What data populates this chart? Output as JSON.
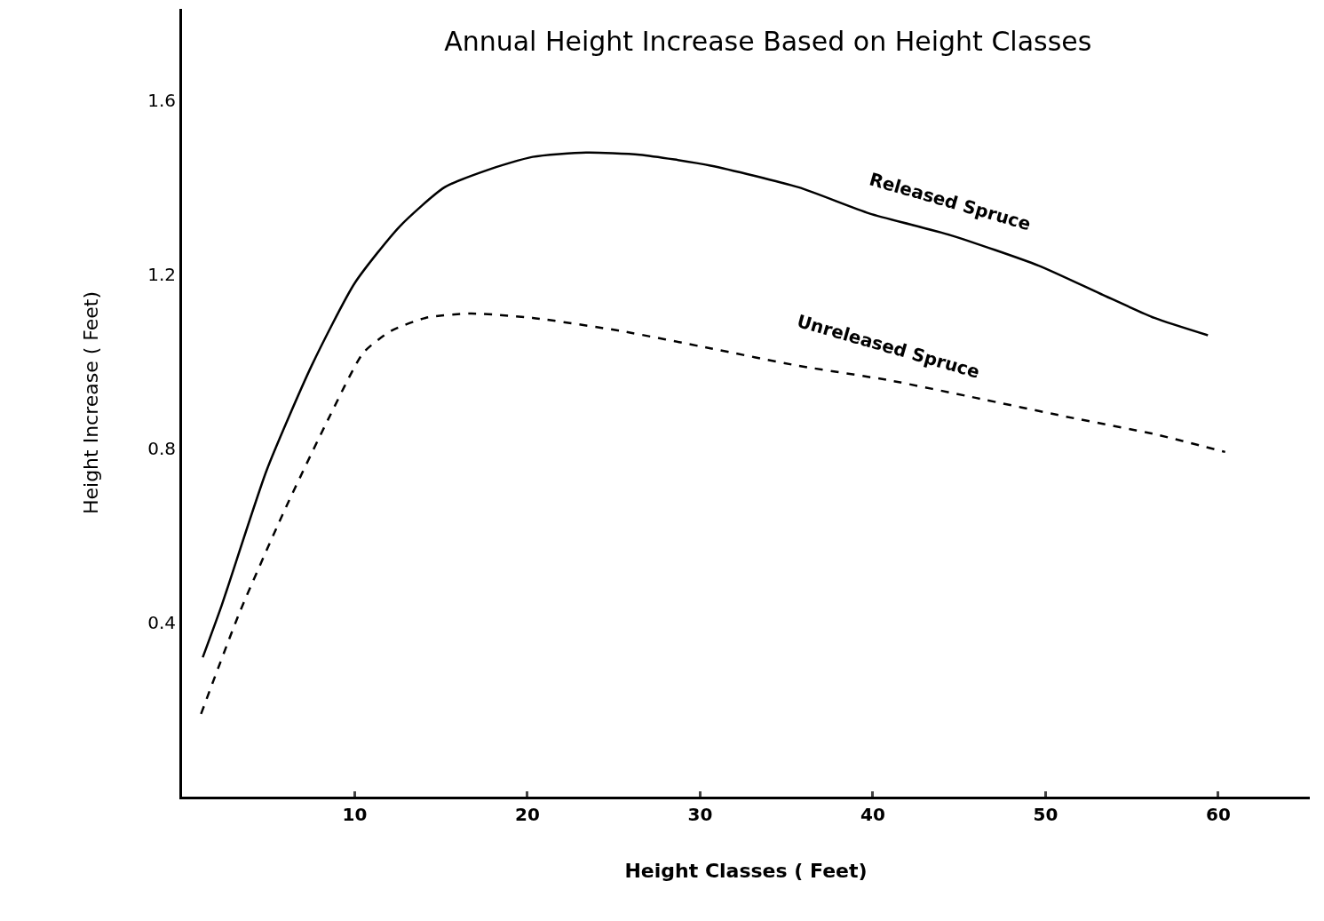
{
  "chart_data": {
    "type": "line",
    "title": "Annual Height Increase Based on Height Classes",
    "xlabel": "Height Classes ( Feet)",
    "ylabel": "Height Increase ( Feet)",
    "xlim": [
      0,
      65.3
    ],
    "ylim": [
      0,
      1.81
    ],
    "xticks": [
      10,
      20,
      30,
      40,
      50,
      60
    ],
    "yticks": [
      0.4,
      0.8,
      1.2,
      1.6
    ],
    "grid": false,
    "legend": false,
    "marker": "none",
    "series": [
      {
        "name": "Released Spruce",
        "color": "#000000",
        "line_style": "solid",
        "x": [
          1.2,
          2.3,
          4.9,
          7.5,
          10,
          12.6,
          15.2,
          17.7,
          20.3,
          23.4,
          26.5,
          30.6,
          35.7,
          39.8,
          44.5,
          49.6,
          53.2,
          56.3,
          59.4
        ],
        "values": [
          0.32,
          0.44,
          0.75,
          0.99,
          1.18,
          1.31,
          1.4,
          1.44,
          1.47,
          1.48,
          1.475,
          1.45,
          1.4,
          1.34,
          1.29,
          1.22,
          1.155,
          1.1,
          1.06
        ]
      },
      {
        "name": "Unreleased Spruce",
        "color": "#000000",
        "line_style": "dashed",
        "x": [
          1.1,
          3.3,
          5.9,
          8.5,
          10.5,
          12.1,
          14.1,
          16.7,
          20.3,
          25.4,
          30.6,
          35.7,
          40.9,
          46,
          51.2,
          56.3,
          60.4
        ],
        "values": [
          0.19,
          0.42,
          0.655,
          0.87,
          1.02,
          1.07,
          1.1,
          1.11,
          1.1,
          1.07,
          1.03,
          0.99,
          0.957,
          0.916,
          0.873,
          0.833,
          0.792
        ]
      }
    ]
  }
}
